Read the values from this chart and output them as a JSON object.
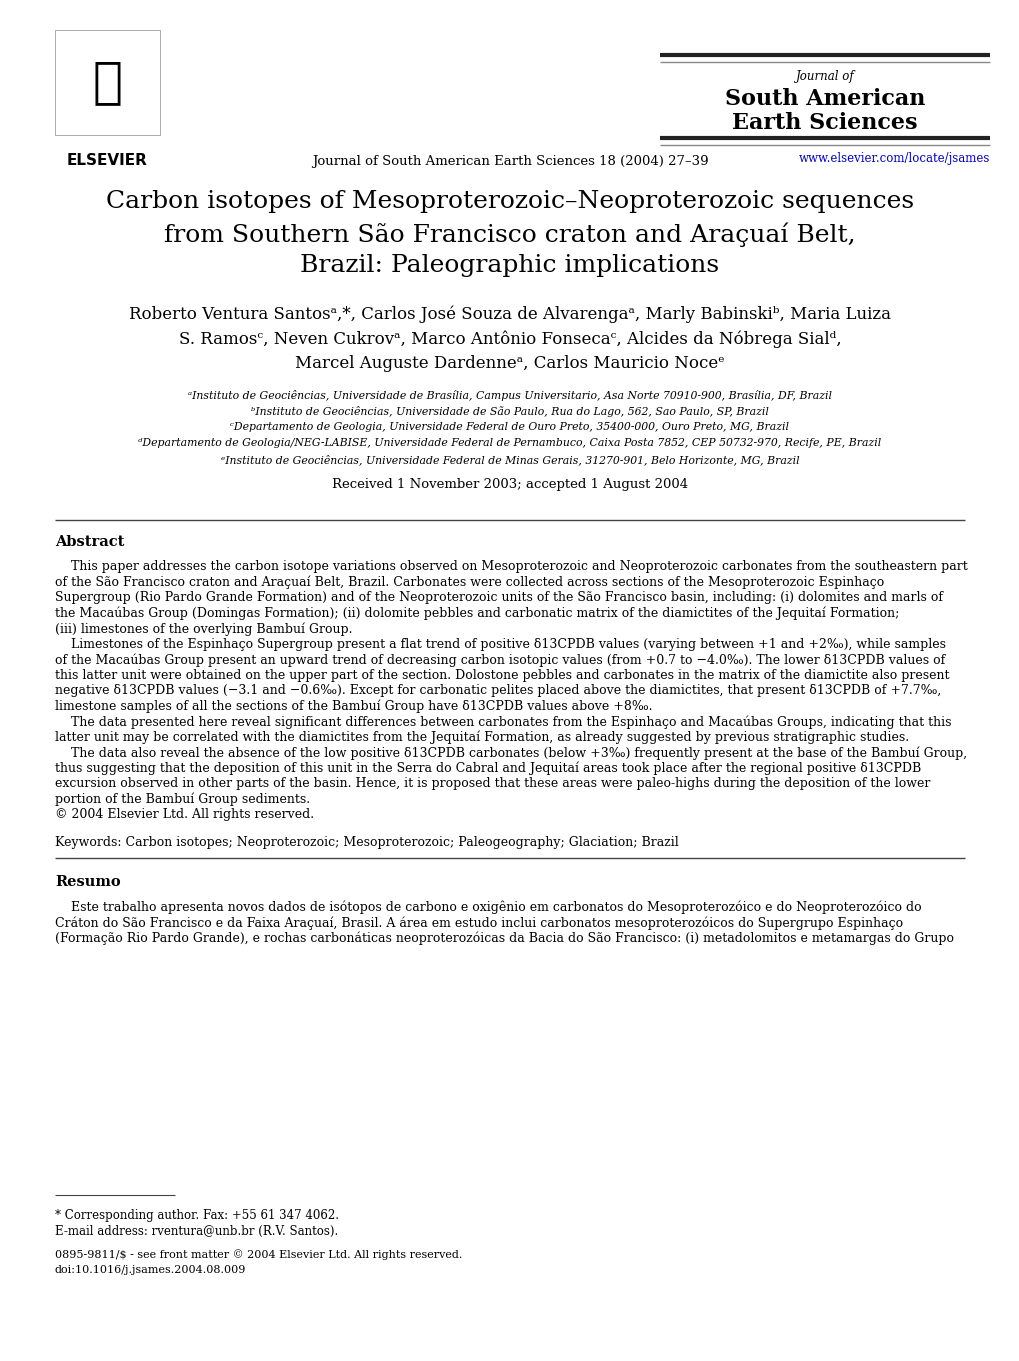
{
  "background_color": "#ffffff",
  "page_width": 10.2,
  "page_height": 13.61,
  "journal_citation": "Journal of South American Earth Sciences 18 (2004) 27–39",
  "journal_url": "www.elsevier.com/locate/jsames",
  "paper_title_line1": "Carbon isotopes of Mesoproterozoic–Neoproterozoic sequences",
  "paper_title_line2": "from Southern São Francisco craton and Araçuaí Belt,",
  "paper_title_line3": "Brazil: Paleographic implications",
  "authors_line1": "Roberto Ventura Santosᵃ,*, Carlos José Souza de Alvarengaᵃ, Marly Babinskiᵇ, Maria Luiza",
  "authors_line2": "S. Ramosᶜ, Neven Cukrovᵃ, Marco Antônio Fonsecaᶜ, Alcides da Nóbrega Sialᵈ,",
  "authors_line3": "Marcel Auguste Dardenneᵃ, Carlos Mauricio Noceᵉ",
  "affil_a": "ᵃInstituto de Geociências, Universidade de Brasília, Campus Universitario, Asa Norte 70910-900, Brasília, DF, Brazil",
  "affil_b": "ᵇInstituto de Geociências, Universidade de São Paulo, Rua do Lago, 562, Sao Paulo, SP, Brazil",
  "affil_c": "ᶜDepartamento de Geologia, Universidade Federal de Ouro Preto, 35400-000, Ouro Preto, MG, Brazil",
  "affil_d": "ᵈDepartamento de Geologia/NEG-LABISE, Universidade Federal de Pernambuco, Caixa Posta 7852, CEP 50732-970, Recife, PE, Brazil",
  "affil_e": "ᵉInstituto de Geociências, Universidade Federal de Minas Gerais, 31270-901, Belo Horizonte, MG, Brazil",
  "received": "Received 1 November 2003; accepted 1 August 2004",
  "abstract_title": "Abstract",
  "keywords": "Keywords: Carbon isotopes; Neoproterozoic; Mesoproterozoic; Paleogeography; Glaciation; Brazil",
  "resumo_title": "Resumo",
  "footnote_corresponding": "* Corresponding author. Fax: +55 61 347 4062.",
  "footnote_email": "E-mail address: rventura@unb.br (R.V. Santos).",
  "footnote_issn": "0895-9811/$ - see front matter © 2004 Elsevier Ltd. All rights reserved.",
  "footnote_doi": "doi:10.1016/j.jsames.2004.08.009",
  "abstract_lines": [
    "    This paper addresses the carbon isotope variations observed on Mesoproterozoic and Neoproterozoic carbonates from the southeastern part",
    "of the São Francisco craton and Araçuaí Belt, Brazil. Carbonates were collected across sections of the Mesoproterozoic Espinhaço",
    "Supergroup (Rio Pardo Grande Formation) and of the Neoproterozoic units of the São Francisco basin, including: (i) dolomites and marls of",
    "the Macaúbas Group (Domingas Formation); (ii) dolomite pebbles and carbonatic matrix of the diamictites of the Jequitaí Formation;",
    "(iii) limestones of the overlying Bambuí Group.",
    "    Limestones of the Espinhaço Supergroup present a flat trend of positive δ13CPDB values (varying between +1 and +2‰), while samples",
    "of the Macaúbas Group present an upward trend of decreasing carbon isotopic values (from +0.7 to −4.0‰). The lower δ13CPDB values of",
    "this latter unit were obtained on the upper part of the section. Dolostone pebbles and carbonates in the matrix of the diamictite also present",
    "negative δ13CPDB values (−3.1 and −0.6‰). Except for carbonatic pelites placed above the diamictites, that present δ13CPDB of +7.7‰,",
    "limestone samples of all the sections of the Bambuí Group have δ13CPDB values above +8‰.",
    "    The data presented here reveal significant differences between carbonates from the Espinhaço and Macaúbas Groups, indicating that this",
    "latter unit may be correlated with the diamictites from the Jequitaí Formation, as already suggested by previous stratigraphic studies.",
    "    The data also reveal the absence of the low positive δ13CPDB carbonates (below +3‰) frequently present at the base of the Bambuí Group,",
    "thus suggesting that the deposition of this unit in the Serra do Cabral and Jequitaí areas took place after the regional positive δ13CPDB",
    "excursion observed in other parts of the basin. Hence, it is proposed that these areas were paleo-highs during the deposition of the lower",
    "portion of the Bambuí Group sediments.",
    "© 2004 Elsevier Ltd. All rights reserved."
  ],
  "resumo_lines": [
    "    Este trabalho apresenta novos dados de isótopos de carbono e oxigênio em carbonatos do Mesoproterozóico e do Neoproterozóico do",
    "Cráton do São Francisco e da Faixa Araçuaí, Brasil. A área em estudo inclui carbonatos mesoproterozóicos do Supergrupo Espinhaço",
    "(Formação Rio Pardo Grande), e rochas carbonáticas neoproterozóicas da Bacia do São Francisco: (i) metadolomitos e metamargas do Grupo"
  ]
}
